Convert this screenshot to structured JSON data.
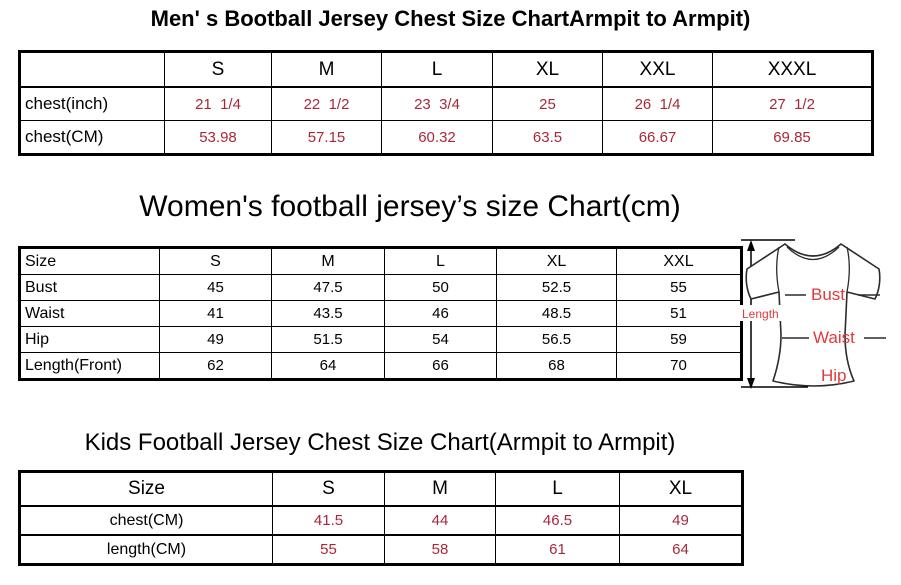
{
  "colors": {
    "table_value_red": "#A8283A",
    "diagram_label_red": "#E03A3A",
    "border_black": "#000000"
  },
  "tables": [
    {
      "id": "mens",
      "title": "Men' s Bootball Jersey Chest Size ChartArmpit to Armpit)",
      "header": [
        "",
        "S",
        "M",
        "L",
        "XL",
        "XXL",
        "XXXL"
      ],
      "rows": [
        {
          "label": "chest(inch)",
          "value_color": "red",
          "values": [
            "21  1/4",
            "22  1/2",
            "23  3/4",
            "25",
            "26  1/4",
            "27  1/2"
          ]
        },
        {
          "label": "chest(CM)",
          "value_color": "red",
          "values": [
            "53.98",
            "57.15",
            "60.32",
            "63.5",
            "66.67",
            "69.85"
          ]
        }
      ]
    },
    {
      "id": "womens",
      "title": "Women's football jersey’s size Chart(cm)",
      "header": [
        "Size",
        "S",
        "M",
        "L",
        "XL",
        "XXL"
      ],
      "rows": [
        {
          "label": "Bust",
          "value_color": "black",
          "values": [
            "45",
            "47.5",
            "50",
            "52.5",
            "55"
          ]
        },
        {
          "label": "Waist",
          "value_color": "black",
          "values": [
            "41",
            "43.5",
            "46",
            "48.5",
            "51"
          ]
        },
        {
          "label": "Hip",
          "value_color": "black",
          "values": [
            "49",
            "51.5",
            "54",
            "56.5",
            "59"
          ]
        },
        {
          "label": "Length(Front)",
          "value_color": "black",
          "values": [
            "62",
            "64",
            "66",
            "68",
            "70"
          ]
        }
      ]
    },
    {
      "id": "kids",
      "title": "Kids Football Jersey Chest Size Chart(Armpit to Armpit)",
      "header": [
        "Size",
        "S",
        "M",
        "L",
        "XL"
      ],
      "rows": [
        {
          "label": "chest(CM)",
          "value_color": "red",
          "values": [
            "41.5",
            "44",
            "46.5",
            "49"
          ]
        },
        {
          "label": "length(CM)",
          "value_color": "red",
          "values": [
            "55",
            "58",
            "61",
            "64"
          ]
        }
      ]
    }
  ],
  "diagram": {
    "length_label": "Length",
    "bust_label": "Bust",
    "waist_label": "Waist",
    "hip_label": "Hip"
  }
}
